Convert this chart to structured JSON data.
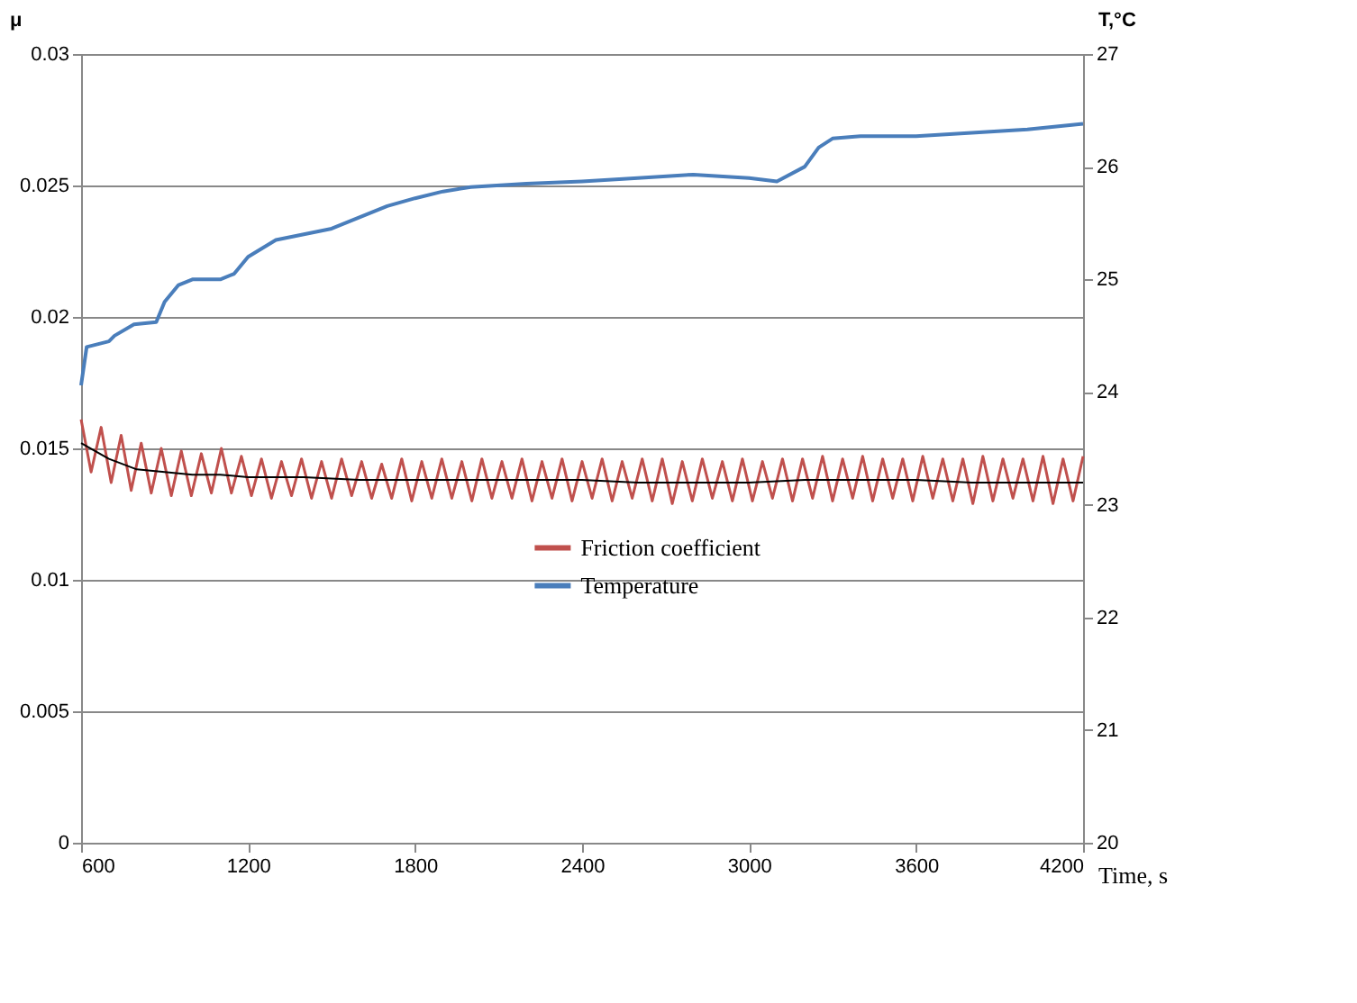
{
  "chart_data": {
    "type": "line",
    "xlabel": "Time, s",
    "ylabel": "μ",
    "y2label": "T,°C",
    "xlim": [
      600,
      4200
    ],
    "xticks": [
      600,
      1200,
      1800,
      2400,
      3000,
      3600,
      4200
    ],
    "ylim": [
      0,
      0.03
    ],
    "yticks": [
      0,
      0.005,
      0.01,
      0.015,
      0.02,
      0.025,
      0.03
    ],
    "y2lim": [
      20,
      27
    ],
    "y2ticks": [
      20,
      21,
      22,
      23,
      24,
      25,
      26,
      27
    ],
    "grid": "y",
    "legend": "center",
    "series": [
      {
        "name": "Friction coefficient",
        "color": "#c0504d",
        "x": [
          600,
          636,
          672,
          708,
          744,
          780,
          816,
          852,
          888,
          924,
          960,
          996,
          1032,
          1068,
          1104,
          1140,
          1176,
          1212,
          1248,
          1284,
          1320,
          1356,
          1392,
          1428,
          1464,
          1500,
          1536,
          1572,
          1608,
          1644,
          1680,
          1716,
          1752,
          1788,
          1824,
          1860,
          1896,
          1932,
          1968,
          2004,
          2040,
          2076,
          2112,
          2148,
          2184,
          2220,
          2256,
          2292,
          2328,
          2364,
          2400,
          2436,
          2472,
          2508,
          2544,
          2580,
          2616,
          2652,
          2688,
          2724,
          2760,
          2796,
          2832,
          2868,
          2904,
          2940,
          2976,
          3012,
          3048,
          3084,
          3120,
          3156,
          3192,
          3228,
          3264,
          3300,
          3336,
          3372,
          3408,
          3444,
          3480,
          3516,
          3552,
          3588,
          3624,
          3660,
          3696,
          3732,
          3768,
          3804,
          3840,
          3876,
          3912,
          3948,
          3984,
          4020,
          4056,
          4092,
          4128,
          4164,
          4200
        ],
        "values": [
          0.0161,
          0.0141,
          0.0158,
          0.0137,
          0.0155,
          0.0134,
          0.0152,
          0.0133,
          0.015,
          0.0132,
          0.0149,
          0.0132,
          0.0148,
          0.0133,
          0.015,
          0.0133,
          0.0147,
          0.0132,
          0.0146,
          0.0131,
          0.0145,
          0.0132,
          0.0146,
          0.0131,
          0.0145,
          0.0131,
          0.0146,
          0.0132,
          0.0145,
          0.0131,
          0.0144,
          0.0131,
          0.0146,
          0.013,
          0.0145,
          0.0131,
          0.0146,
          0.0131,
          0.0145,
          0.013,
          0.0146,
          0.0131,
          0.0145,
          0.0131,
          0.0146,
          0.013,
          0.0145,
          0.0131,
          0.0146,
          0.013,
          0.0145,
          0.0131,
          0.0146,
          0.013,
          0.0145,
          0.0131,
          0.0146,
          0.013,
          0.0146,
          0.0129,
          0.0145,
          0.013,
          0.0146,
          0.0131,
          0.0145,
          0.013,
          0.0146,
          0.013,
          0.0145,
          0.0131,
          0.0146,
          0.013,
          0.0146,
          0.0131,
          0.0147,
          0.013,
          0.0146,
          0.0131,
          0.0147,
          0.013,
          0.0146,
          0.0131,
          0.0146,
          0.013,
          0.0147,
          0.0131,
          0.0146,
          0.013,
          0.0146,
          0.0129,
          0.0147,
          0.013,
          0.0146,
          0.0131,
          0.0146,
          0.013,
          0.0147,
          0.0129,
          0.0146,
          0.013,
          0.0147
        ]
      },
      {
        "color": "#000000",
        "x": [
          600,
          700,
          800,
          900,
          1000,
          1100,
          1200,
          1400,
          1600,
          1800,
          2000,
          2200,
          2400,
          2600,
          2800,
          3000,
          3200,
          3400,
          3600,
          3800,
          4000,
          4200
        ],
        "values": [
          0.0152,
          0.0146,
          0.0142,
          0.0141,
          0.014,
          0.014,
          0.0139,
          0.0139,
          0.0138,
          0.0138,
          0.0138,
          0.0138,
          0.0138,
          0.0137,
          0.0137,
          0.0137,
          0.0138,
          0.0138,
          0.0138,
          0.0137,
          0.0137,
          0.0137
        ]
      },
      {
        "name": "Temperature",
        "color": "#4a7ebb",
        "axis": "y2",
        "x": [
          600,
          620,
          700,
          720,
          790,
          870,
          900,
          950,
          1000,
          1100,
          1150,
          1200,
          1300,
          1400,
          1500,
          1600,
          1700,
          1800,
          1900,
          2000,
          2200,
          2400,
          2600,
          2800,
          3000,
          3100,
          3200,
          3250,
          3300,
          3400,
          3600,
          3800,
          4000,
          4200
        ],
        "values": [
          24.06,
          24.4,
          24.45,
          24.5,
          24.6,
          24.62,
          24.8,
          24.95,
          25.0,
          25.0,
          25.05,
          25.2,
          25.35,
          25.4,
          25.45,
          25.55,
          25.65,
          25.72,
          25.78,
          25.82,
          25.85,
          25.87,
          25.9,
          25.93,
          25.9,
          25.87,
          26.0,
          26.17,
          26.25,
          26.27,
          26.27,
          26.3,
          26.33,
          26.38
        ]
      }
    ]
  }
}
